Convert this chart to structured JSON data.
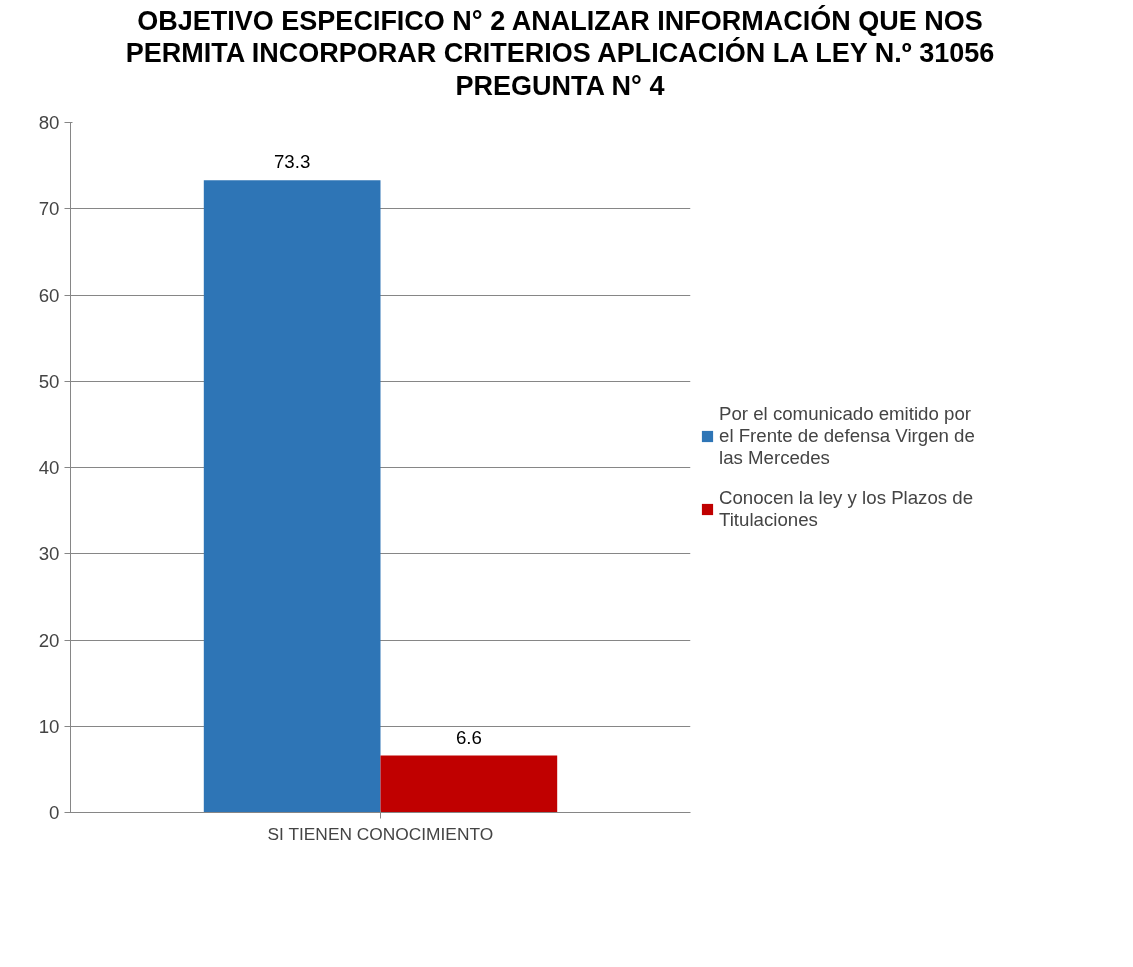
{
  "chart_data": {
    "type": "bar",
    "title": "OBJETIVO ESPECIFICO N° 2 ANALIZAR INFORMACIÓN QUE NOS\nPERMITA INCORPORAR CRITERIOS APLICACIÓN LA LEY N.º   31056\nPREGUNTA N° 4",
    "categories": [
      "SI TIENEN CONOCIMIENTO"
    ],
    "series": [
      {
        "name": "Por el comunicado emitido por el Frente de defensa Virgen de las Mercedes",
        "color": "#2e75b6",
        "values": [
          73.3
        ]
      },
      {
        "name": "Conocen la ley y los Plazos de Titulaciones",
        "color": "#c00000",
        "values": [
          6.6
        ]
      }
    ],
    "ylim": [
      0,
      80
    ],
    "yticks": [
      0,
      10,
      20,
      30,
      40,
      50,
      60,
      70,
      80
    ],
    "grid": "y",
    "legend": "right",
    "data_labels": true
  }
}
